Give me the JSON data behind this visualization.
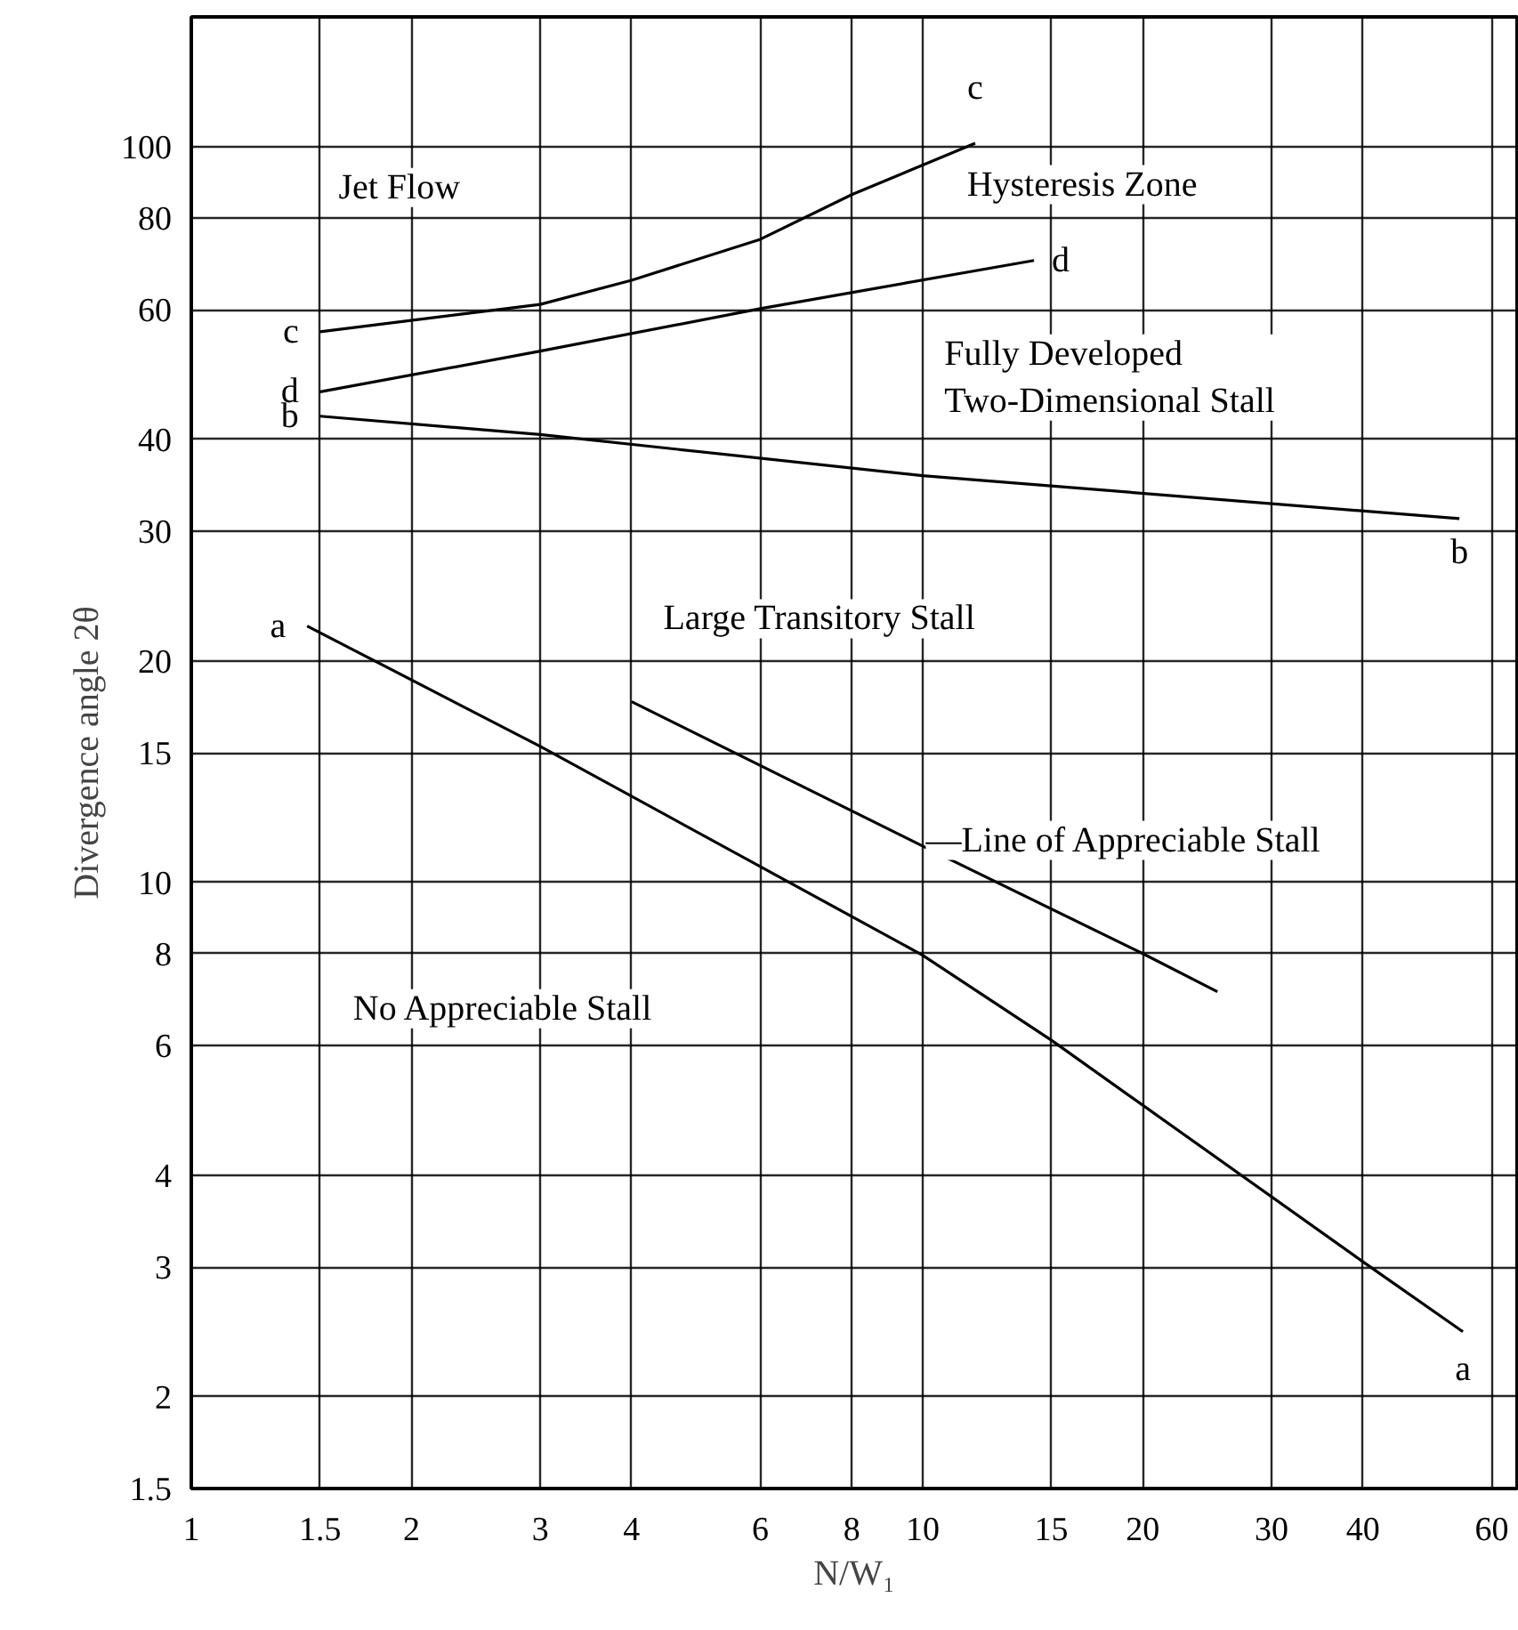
{
  "chart_data": {
    "type": "line",
    "xlabel": "N/W₁",
    "ylabel": "Divergence angle 2θ",
    "log": "xy",
    "grid": true,
    "marker": "none",
    "line_style": "solid",
    "xlim": [
      1,
      65
    ],
    "xticks": [
      1,
      1.5,
      2,
      3,
      4,
      6,
      8,
      10,
      15,
      20,
      30,
      40,
      60
    ],
    "ylim": [
      1.5,
      150
    ],
    "yticks": [
      1.5,
      2,
      3,
      4,
      6,
      8,
      10,
      15,
      20,
      30,
      40,
      60,
      80,
      100
    ],
    "series": [
      {
        "name": "c",
        "color": "#000000",
        "x": [
          1.5,
          3,
          4,
          6,
          8,
          11.8
        ],
        "values": [
          56,
          61,
          65.8,
          74.8,
          86,
          101
        ]
      },
      {
        "name": "d",
        "color": "#000000",
        "x": [
          1.5,
          3,
          6,
          14.2
        ],
        "values": [
          46.4,
          52.7,
          60.2,
          70
        ]
      },
      {
        "name": "b",
        "color": "#000000",
        "x": [
          1.5,
          3,
          10,
          54.2
        ],
        "values": [
          43,
          40.6,
          35.7,
          31.2
        ]
      },
      {
        "name": "a",
        "color": "#000000",
        "x": [
          1.44,
          3,
          10,
          15,
          40,
          54.8
        ],
        "values": [
          22.3,
          15.3,
          7.96,
          6.1,
          3.05,
          2.45
        ]
      },
      {
        "color": "#000000",
        "x": [
          4,
          10,
          20,
          25.3
        ],
        "values": [
          17.6,
          11.2,
          8.0,
          7.1
        ]
      }
    ],
    "annotations": [
      "Jet Flow",
      "Hysteresis Zone",
      "Fully Developed\nTwo-Dimensional Stall",
      "Large Transitory Stall",
      "No Appreciable Stall",
      {
        "text": "—Line of Appreciable Stall",
        "x": 10.1,
        "y": 11.4
      }
    ]
  }
}
